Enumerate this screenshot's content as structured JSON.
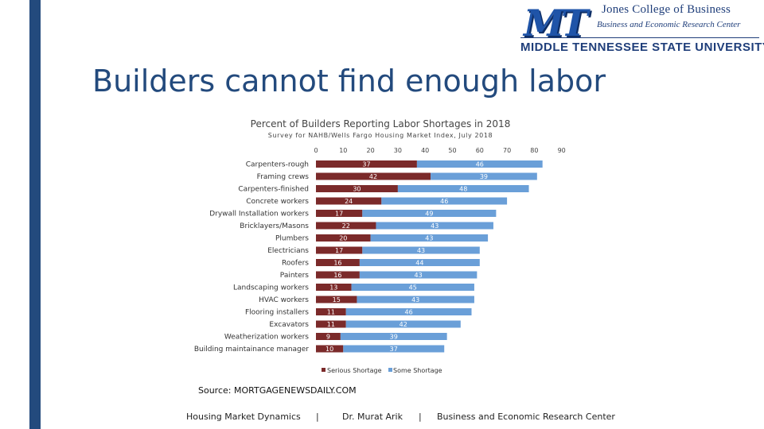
{
  "logo": {
    "mark": "MT",
    "college": "Jones College of Business",
    "center": "Business and Economic Research Center",
    "university": "MIDDLE TENNESSEE STATE UNIVERSITY"
  },
  "page_title": "Builders cannot find enough labor",
  "source": "Source: MORTGAGENEWSDAILY.COM",
  "footer": {
    "left": "Housing Market Dynamics",
    "sep1": "|",
    "middle": "Dr. Murat Arik",
    "sep2": "|",
    "right": "Business and Economic Research Center"
  },
  "colors": {
    "sidebar": "#234a7d",
    "serious": "#7b2a2a",
    "some": "#6a9fd8"
  },
  "chart_data": {
    "type": "bar",
    "orientation": "horizontal",
    "stacked": true,
    "title": "Percent of Builders Reporting Labor Shortages in 2018",
    "subtitle": "Survey for NAHB/Wells Fargo Housing Market Index, July 2018",
    "xlim": [
      0,
      90
    ],
    "xticks": [
      0,
      10,
      20,
      30,
      40,
      50,
      60,
      70,
      80,
      90
    ],
    "grid": false,
    "legend_position": "bottom",
    "categories": [
      "Carpenters-rough",
      "Framing crews",
      "Carpenters-finished",
      "Concrete workers",
      "Drywall Installation workers",
      "Bricklayers/Masons",
      "Plumbers",
      "Electricians",
      "Roofers",
      "Painters",
      "Landscaping workers",
      "HVAC workers",
      "Flooring installers",
      "Excavators",
      "Weatherization workers",
      "Building maintainance manager"
    ],
    "series": [
      {
        "name": "Serious Shortage",
        "color": "#7b2a2a",
        "values": [
          37,
          42,
          30,
          24,
          17,
          22,
          20,
          17,
          16,
          16,
          13,
          15,
          11,
          11,
          9,
          10
        ]
      },
      {
        "name": "Some Shortage",
        "color": "#6a9fd8",
        "values": [
          46,
          39,
          48,
          46,
          49,
          43,
          43,
          43,
          44,
          43,
          45,
          43,
          46,
          42,
          39,
          37
        ]
      }
    ]
  }
}
